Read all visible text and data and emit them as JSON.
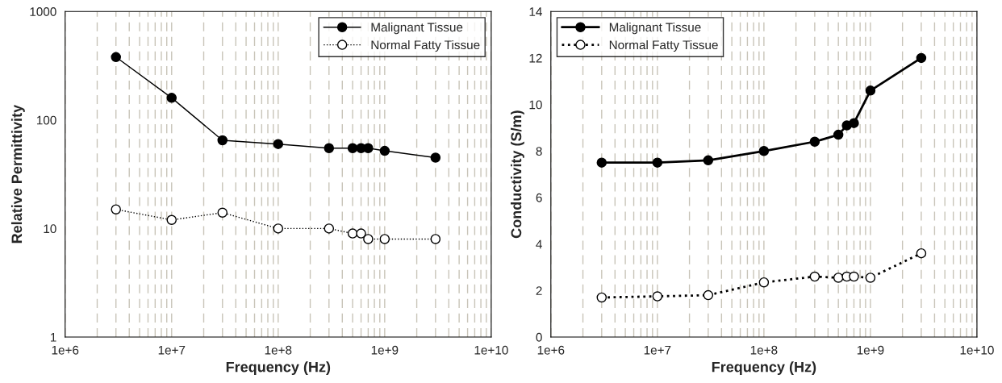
{
  "chart_data": [
    {
      "type": "line",
      "xlabel": "Frequency (Hz)",
      "ylabel": "Relative Permittivity",
      "x": [
        3000000,
        10000000,
        30000000,
        100000000,
        300000000,
        500000000,
        600000000,
        700000000,
        1000000000,
        3000000000
      ],
      "series": [
        {
          "name": "Malignant Tissue",
          "color": "#000000",
          "line_style": "solid",
          "values": [
            380,
            160,
            65,
            60,
            55,
            55,
            55,
            55,
            52,
            45
          ]
        },
        {
          "name": "Normal Fatty Tissue",
          "color": "#000000",
          "line_style": "dotted",
          "values": [
            15,
            12,
            14,
            10,
            10,
            9,
            9,
            8,
            8,
            8
          ]
        }
      ],
      "log": "xy",
      "xlim": [
        1000000,
        10000000000
      ],
      "xticks": [
        {
          "value": 1000000,
          "label": "1e+6"
        },
        {
          "value": 10000000,
          "label": "1e+7"
        },
        {
          "value": 100000000,
          "label": "1e+8"
        },
        {
          "value": 1000000000,
          "label": "1e+9"
        },
        {
          "value": 10000000000,
          "label": "1e+10"
        }
      ],
      "ylim": [
        1,
        1000
      ],
      "yticks": [
        1,
        10,
        100,
        1000
      ],
      "grid": "x",
      "legend": "top right",
      "marker": "circle"
    },
    {
      "type": "line",
      "xlabel": "Frequency (Hz)",
      "ylabel": "Conductivity (S/m)",
      "x": [
        3000000,
        10000000,
        30000000,
        100000000,
        300000000,
        500000000,
        600000000,
        700000000,
        1000000000,
        3000000000
      ],
      "series": [
        {
          "name": "Malignant Tissue",
          "color": "#000000",
          "line_style": "solid",
          "values": [
            7.5,
            7.5,
            7.6,
            8.0,
            8.4,
            8.7,
            9.1,
            9.2,
            10.6,
            12.0
          ]
        },
        {
          "name": "Normal Fatty Tissue",
          "color": "#000000",
          "line_style": "dotted",
          "values": [
            1.7,
            1.75,
            1.8,
            2.35,
            2.6,
            2.55,
            2.6,
            2.6,
            2.55,
            3.6
          ]
        }
      ],
      "log": "x",
      "xlim": [
        1000000,
        10000000000
      ],
      "xticks": [
        {
          "value": 1000000,
          "label": "1e+6"
        },
        {
          "value": 10000000,
          "label": "1e+7"
        },
        {
          "value": 100000000,
          "label": "1e+8"
        },
        {
          "value": 1000000000,
          "label": "1e+9"
        },
        {
          "value": 10000000000,
          "label": "1e+10"
        }
      ],
      "ylim": [
        0,
        14
      ],
      "yticks": [
        0,
        2,
        4,
        6,
        8,
        10,
        12,
        14
      ],
      "grid": "x",
      "legend": "top left",
      "marker": "circle"
    }
  ]
}
